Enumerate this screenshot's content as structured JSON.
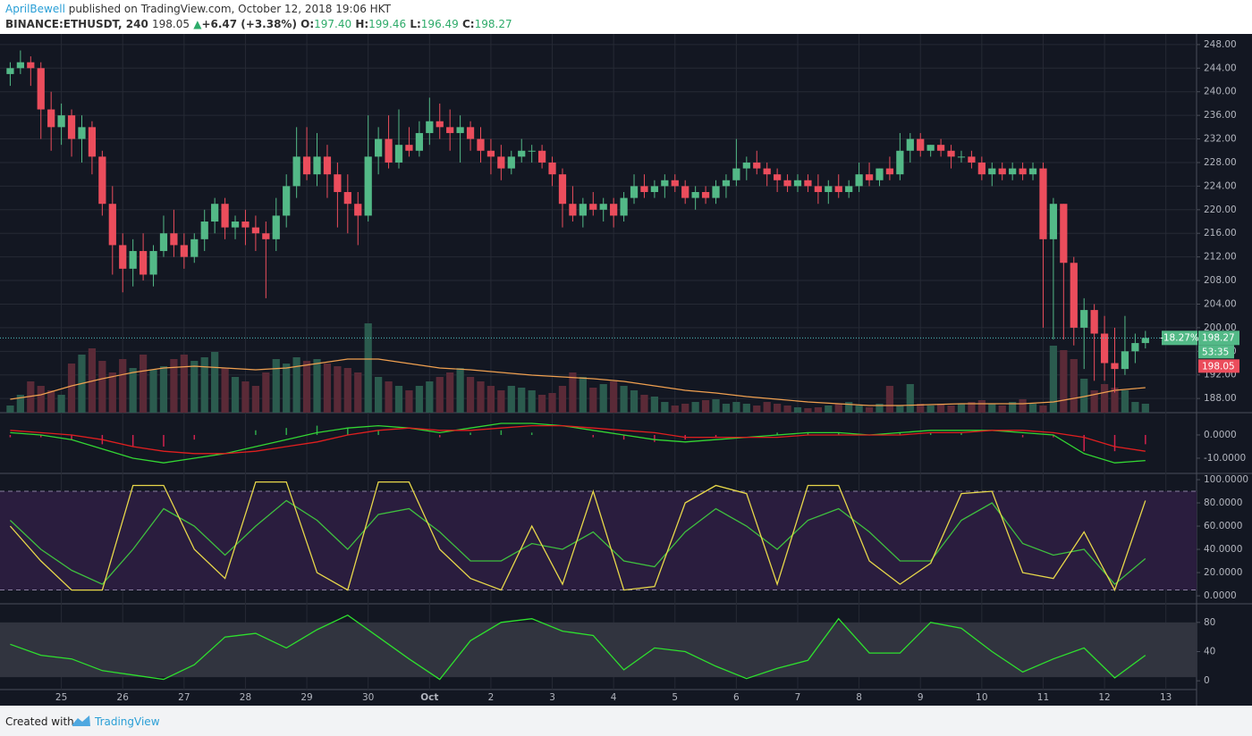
{
  "header": {
    "author": "AprilBewell",
    "published": "published on TradingView.com, October 12, 2018 19:06 HKT",
    "symbol": "BINANCE:ETHUSDT, 240",
    "price": "198.05",
    "arrow": "▲",
    "change": "+6.47 (+3.38%)",
    "ohlc": [
      {
        "key": "O:",
        "value": "197.40"
      },
      {
        "key": "H:",
        "value": "199.46"
      },
      {
        "key": "L:",
        "value": "196.49"
      },
      {
        "key": "C:",
        "value": "198.27"
      }
    ]
  },
  "footer": {
    "created": "Created with",
    "brand": "TradingView"
  },
  "chart_data": [
    {
      "type": "candlestick",
      "up_color": "#53b987",
      "down_color": "#eb4d5c",
      "volume_up_color": "#2b5b4e",
      "volume_down_color": "#5a2a37",
      "grid": true,
      "ylim": [
        185.6,
        249.8
      ],
      "yticks": [
        {
          "value": 188,
          "label": "188.00"
        },
        {
          "value": 192,
          "label": "192.00"
        },
        {
          "value": 196,
          "label": "196.00"
        },
        {
          "value": 200,
          "label": "200.00"
        },
        {
          "value": 204,
          "label": "204.00"
        },
        {
          "value": 208,
          "label": "208.00"
        },
        {
          "value": 212,
          "label": "212.00"
        },
        {
          "value": 216,
          "label": "216.00"
        },
        {
          "value": 220,
          "label": "220.00"
        },
        {
          "value": 224,
          "label": "224.00"
        },
        {
          "value": 228,
          "label": "228.00"
        },
        {
          "value": 232,
          "label": "232.00"
        },
        {
          "value": 236,
          "label": "236.00"
        },
        {
          "value": 240,
          "label": "240.00"
        },
        {
          "value": 244,
          "label": "244.00"
        },
        {
          "value": 248,
          "label": "248.00"
        }
      ],
      "xlim": [
        -1,
        116
      ],
      "xticks": [
        {
          "value": 5,
          "label": "25"
        },
        {
          "value": 11,
          "label": "26"
        },
        {
          "value": 17,
          "label": "27"
        },
        {
          "value": 23,
          "label": "28"
        },
        {
          "value": 29,
          "label": "29"
        },
        {
          "value": 35,
          "label": "30"
        },
        {
          "value": 41,
          "label": "Oct"
        },
        {
          "value": 47,
          "label": "2"
        },
        {
          "value": 53,
          "label": "3"
        },
        {
          "value": 59,
          "label": "4"
        },
        {
          "value": 65,
          "label": "5"
        },
        {
          "value": 71,
          "label": "6"
        },
        {
          "value": 77,
          "label": "7"
        },
        {
          "value": 83,
          "label": "8"
        },
        {
          "value": 89,
          "label": "9"
        },
        {
          "value": 95,
          "label": "10"
        },
        {
          "value": 101,
          "label": "11"
        },
        {
          "value": 107,
          "label": "12"
        },
        {
          "value": 113,
          "label": "13"
        }
      ],
      "ohlc": [
        [
          243,
          245,
          241,
          244
        ],
        [
          244,
          247,
          243,
          245
        ],
        [
          245,
          246,
          241,
          244
        ],
        [
          244,
          245,
          232,
          237
        ],
        [
          237,
          240,
          230,
          234
        ],
        [
          234,
          238,
          231,
          236
        ],
        [
          236,
          237,
          229,
          232
        ],
        [
          232,
          236,
          228,
          234
        ],
        [
          234,
          235,
          226,
          229
        ],
        [
          229,
          230,
          219,
          221
        ],
        [
          221,
          224,
          209,
          214
        ],
        [
          214,
          216,
          206,
          210
        ],
        [
          210,
          215,
          207,
          213
        ],
        [
          213,
          216,
          208,
          209
        ],
        [
          209,
          214,
          207,
          213
        ],
        [
          213,
          219,
          212,
          216
        ],
        [
          216,
          220,
          212,
          214
        ],
        [
          214,
          216,
          210,
          212
        ],
        [
          212,
          216,
          211,
          215
        ],
        [
          215,
          220,
          213,
          218
        ],
        [
          218,
          222,
          216,
          221
        ],
        [
          221,
          222,
          215,
          217
        ],
        [
          217,
          219,
          215,
          218
        ],
        [
          218,
          220,
          214,
          217
        ],
        [
          217,
          219,
          213,
          216
        ],
        [
          216,
          218,
          205,
          215
        ],
        [
          215,
          222,
          213,
          219
        ],
        [
          219,
          226,
          217,
          224
        ],
        [
          224,
          234,
          222,
          229
        ],
        [
          229,
          234,
          225,
          226
        ],
        [
          226,
          233,
          224,
          229
        ],
        [
          229,
          231,
          222,
          226
        ],
        [
          226,
          228,
          217,
          223
        ],
        [
          223,
          226,
          216,
          221
        ],
        [
          221,
          223,
          214,
          219
        ],
        [
          219,
          236,
          218,
          229
        ],
        [
          229,
          234,
          226,
          232
        ],
        [
          232,
          236,
          227,
          228
        ],
        [
          228,
          237,
          227,
          231
        ],
        [
          231,
          234,
          229,
          230
        ],
        [
          230,
          235,
          229,
          233
        ],
        [
          233,
          239,
          231,
          235
        ],
        [
          235,
          238,
          232,
          234
        ],
        [
          234,
          237,
          230,
          233
        ],
        [
          233,
          236,
          228,
          234
        ],
        [
          234,
          235,
          230,
          232
        ],
        [
          232,
          234,
          228,
          230
        ],
        [
          230,
          232,
          226,
          229
        ],
        [
          229,
          231,
          225,
          227
        ],
        [
          227,
          230,
          226,
          229
        ],
        [
          229,
          232,
          228,
          230
        ],
        [
          230,
          231,
          228,
          230
        ],
        [
          230,
          231,
          227,
          228
        ],
        [
          228,
          229,
          224,
          226
        ],
        [
          226,
          227,
          217,
          221
        ],
        [
          221,
          224,
          218,
          219
        ],
        [
          219,
          222,
          217,
          221
        ],
        [
          221,
          223,
          219,
          220
        ],
        [
          220,
          222,
          218,
          221
        ],
        [
          221,
          222,
          217,
          219
        ],
        [
          219,
          223,
          218,
          222
        ],
        [
          222,
          226,
          221,
          224
        ],
        [
          224,
          226,
          222,
          223
        ],
        [
          223,
          225,
          222,
          224
        ],
        [
          224,
          226,
          222,
          225
        ],
        [
          225,
          226,
          223,
          224
        ],
        [
          224,
          225,
          221,
          222
        ],
        [
          222,
          224,
          220,
          223
        ],
        [
          223,
          224,
          221,
          222
        ],
        [
          222,
          225,
          221,
          224
        ],
        [
          224,
          226,
          222,
          225
        ],
        [
          225,
          232,
          224,
          227
        ],
        [
          227,
          229,
          225,
          228
        ],
        [
          228,
          230,
          226,
          227
        ],
        [
          227,
          228,
          224,
          226
        ],
        [
          226,
          227,
          223,
          225
        ],
        [
          225,
          226,
          223,
          224
        ],
        [
          224,
          226,
          223,
          225
        ],
        [
          225,
          226,
          223,
          224
        ],
        [
          224,
          226,
          221,
          223
        ],
        [
          223,
          225,
          221,
          224
        ],
        [
          224,
          226,
          222,
          223
        ],
        [
          223,
          225,
          222,
          224
        ],
        [
          224,
          228,
          223,
          226
        ],
        [
          226,
          228,
          224,
          225
        ],
        [
          225,
          227,
          224,
          227
        ],
        [
          227,
          229,
          225,
          226
        ],
        [
          226,
          233,
          225,
          230
        ],
        [
          230,
          233,
          228,
          232
        ],
        [
          232,
          233,
          229,
          230
        ],
        [
          230,
          231,
          229,
          231
        ],
        [
          231,
          232,
          229,
          230
        ],
        [
          230,
          231,
          227,
          229
        ],
        [
          229,
          230,
          228,
          229
        ],
        [
          229,
          230,
          227,
          228
        ],
        [
          228,
          229,
          225,
          226
        ],
        [
          226,
          228,
          224,
          227
        ],
        [
          227,
          228,
          225,
          226
        ],
        [
          226,
          228,
          225,
          227
        ],
        [
          227,
          228,
          225,
          226
        ],
        [
          226,
          228,
          225,
          227
        ],
        [
          227,
          228,
          200,
          215
        ],
        [
          215,
          222,
          198,
          221
        ],
        [
          221,
          221,
          198,
          211
        ],
        [
          211,
          212,
          197,
          200
        ],
        [
          200,
          205,
          193,
          203
        ],
        [
          203,
          204,
          191,
          199
        ],
        [
          199,
          202,
          191,
          194
        ],
        [
          194,
          200,
          189,
          193
        ],
        [
          193,
          202,
          192,
          196
        ],
        [
          196,
          199,
          194,
          197.4
        ],
        [
          197.4,
          199.46,
          196.49,
          198.27
        ]
      ],
      "volume_ylim": [
        0,
        110
      ],
      "volume": [
        8,
        20,
        35,
        30,
        25,
        20,
        55,
        65,
        72,
        58,
        45,
        60,
        50,
        65,
        48,
        52,
        60,
        65,
        58,
        62,
        68,
        50,
        40,
        35,
        30,
        45,
        60,
        55,
        62,
        58,
        60,
        55,
        52,
        50,
        45,
        100,
        40,
        35,
        30,
        25,
        30,
        35,
        40,
        45,
        50,
        40,
        35,
        30,
        25,
        30,
        28,
        25,
        20,
        22,
        30,
        45,
        40,
        28,
        32,
        35,
        30,
        25,
        20,
        18,
        12,
        8,
        10,
        12,
        14,
        15,
        10,
        12,
        10,
        8,
        12,
        10,
        8,
        6,
        5,
        6,
        8,
        10,
        12,
        8,
        6,
        10,
        30,
        8,
        32,
        10,
        8,
        10,
        8,
        10,
        12,
        14,
        10,
        8,
        12,
        15,
        10,
        8,
        75,
        70,
        60,
        38,
        25,
        32,
        28,
        25,
        12,
        10
      ],
      "volume_ma": {
        "color": "#f0a050",
        "values": [
          15,
          20,
          30,
          38,
          45,
          50,
          52,
          50,
          48,
          50,
          55,
          60,
          60,
          55,
          50,
          48,
          45,
          42,
          40,
          38,
          35,
          30,
          25,
          22,
          18,
          15,
          12,
          10,
          8,
          8,
          9,
          10,
          10,
          10,
          12,
          18,
          25,
          28
        ]
      },
      "last_price": 198.27,
      "change_label": "-18.27%",
      "countdown": "53:35",
      "bid": 198.05
    },
    {
      "type": "macd",
      "ylim": [
        -15.4,
        9.6
      ],
      "yticks": [
        {
          "value": 0,
          "label": "0.0000"
        },
        {
          "value": -10,
          "label": "-10.0000"
        }
      ],
      "macd": {
        "color": "#33d633",
        "values": [
          1,
          0,
          -2,
          -6,
          -10,
          -12,
          -10,
          -8,
          -5,
          -2,
          1,
          3,
          4,
          3,
          1,
          3,
          5,
          5,
          4,
          2,
          0,
          -2,
          -3,
          -2,
          -1,
          0,
          1,
          1,
          0,
          1,
          2,
          2,
          2,
          1,
          0,
          -8,
          -12,
          -11
        ]
      },
      "signal": {
        "color": "#e01f1f",
        "values": [
          2,
          1,
          0,
          -2,
          -5,
          -7,
          -8,
          -8,
          -7,
          -5,
          -3,
          0,
          2,
          3,
          2,
          2,
          3,
          4,
          4,
          3,
          2,
          1,
          -1,
          -1,
          -1,
          -1,
          0,
          0,
          0,
          0,
          1,
          1,
          2,
          2,
          1,
          -1,
          -5,
          -7
        ]
      },
      "histogram": {
        "up_color": "#2ea84a",
        "down_color": "#d0224e",
        "values": [
          -1,
          -1,
          -2,
          -4,
          -5,
          -5,
          -2,
          0,
          2,
          3,
          4,
          3,
          2,
          0,
          -1,
          1,
          2,
          1,
          0,
          -1,
          -2,
          -3,
          -2,
          -1,
          0,
          1,
          1,
          1,
          0,
          1,
          1,
          1,
          0,
          -1,
          -1,
          -7,
          -7,
          -4
        ]
      }
    },
    {
      "type": "stoch",
      "ylim": [
        -3.8,
        105.4
      ],
      "band": [
        90,
        5
      ],
      "band_color": "#2a1d3e",
      "yticks": [
        {
          "value": 0,
          "label": "0.0000"
        },
        {
          "value": 20,
          "label": "20.0000"
        },
        {
          "value": 40,
          "label": "40.0000"
        },
        {
          "value": 60,
          "label": "60.0000"
        },
        {
          "value": 80,
          "label": "80.0000"
        },
        {
          "value": 100,
          "label": "100.0000"
        }
      ],
      "k": {
        "color": "#e8d84a",
        "values": [
          60,
          30,
          5,
          5,
          95,
          95,
          40,
          15,
          98,
          98,
          20,
          5,
          98,
          98,
          40,
          15,
          5,
          60,
          10,
          90,
          5,
          8,
          80,
          95,
          88,
          10,
          95,
          95,
          30,
          10,
          28,
          88,
          90,
          20,
          15,
          55,
          5,
          82
        ]
      },
      "d": {
        "color": "#3fbf3f",
        "values": [
          65,
          40,
          22,
          10,
          40,
          75,
          60,
          35,
          60,
          82,
          65,
          40,
          70,
          75,
          55,
          30,
          30,
          45,
          40,
          55,
          30,
          25,
          55,
          75,
          60,
          40,
          65,
          75,
          55,
          30,
          30,
          65,
          80,
          45,
          35,
          40,
          10,
          32
        ]
      }
    },
    {
      "type": "rsi",
      "ylim": [
        -12,
        105.5
      ],
      "band": [
        80,
        5
      ],
      "band_color": "#31343f",
      "yticks": [
        0,
        40,
        80
      ],
      "rsi": {
        "color": "#2ee02e",
        "values": [
          50,
          35,
          30,
          14,
          8,
          2,
          22,
          60,
          65,
          45,
          70,
          90,
          60,
          30,
          2,
          55,
          80,
          85,
          68,
          62,
          15,
          45,
          40,
          20,
          3,
          17,
          28,
          85,
          38,
          38,
          80,
          72,
          40,
          12,
          30,
          45,
          4,
          35
        ]
      }
    }
  ]
}
